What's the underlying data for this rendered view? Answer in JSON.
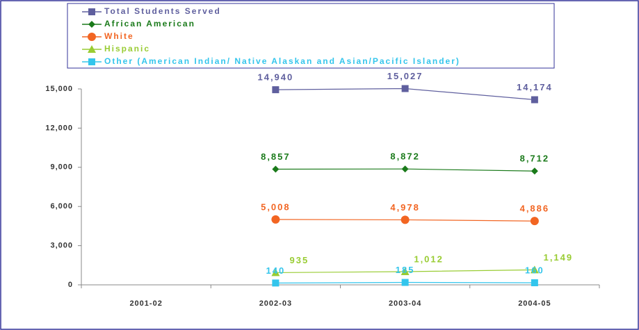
{
  "chart_data": {
    "type": "line",
    "categories": [
      "2001-02",
      "2002-03",
      "2003-04",
      "2004-05"
    ],
    "series": [
      {
        "name": "Total Students Served",
        "color": "#5f5f9e",
        "marker": "square",
        "values": [
          null,
          14940,
          15027,
          14174
        ],
        "value_labels": [
          null,
          "14,940",
          "15,027",
          "14,174"
        ]
      },
      {
        "name": "African American",
        "color": "#1a7a1a",
        "marker": "diamond",
        "values": [
          null,
          8857,
          8872,
          8712
        ],
        "value_labels": [
          null,
          "8,857",
          "8,872",
          "8,712"
        ]
      },
      {
        "name": "White",
        "color": "#f26522",
        "marker": "circle",
        "values": [
          null,
          5008,
          4978,
          4886
        ],
        "value_labels": [
          null,
          "5,008",
          "4,978",
          "4,886"
        ]
      },
      {
        "name": "Hispanic",
        "color": "#99cc33",
        "marker": "triangle",
        "values": [
          null,
          935,
          1012,
          1149
        ],
        "value_labels": [
          null,
          "935",
          "1,012",
          "1,149"
        ]
      },
      {
        "name": "Other (American Indian/ Native Alaskan and Asian/Pacific Islander)",
        "color": "#33c5ec",
        "marker": "square",
        "values": [
          null,
          140,
          185,
          160
        ],
        "value_labels": [
          null,
          "140",
          "185",
          "160"
        ]
      }
    ],
    "ylim": [
      0,
      15000
    ],
    "yticks": [
      {
        "value": 0,
        "label": "0"
      },
      {
        "value": 3000,
        "label": "3,000"
      },
      {
        "value": 6000,
        "label": "6,000"
      },
      {
        "value": 9000,
        "label": "9,000"
      },
      {
        "value": 12000,
        "label": "12,000"
      },
      {
        "value": 15000,
        "label": "15,000"
      }
    ]
  }
}
